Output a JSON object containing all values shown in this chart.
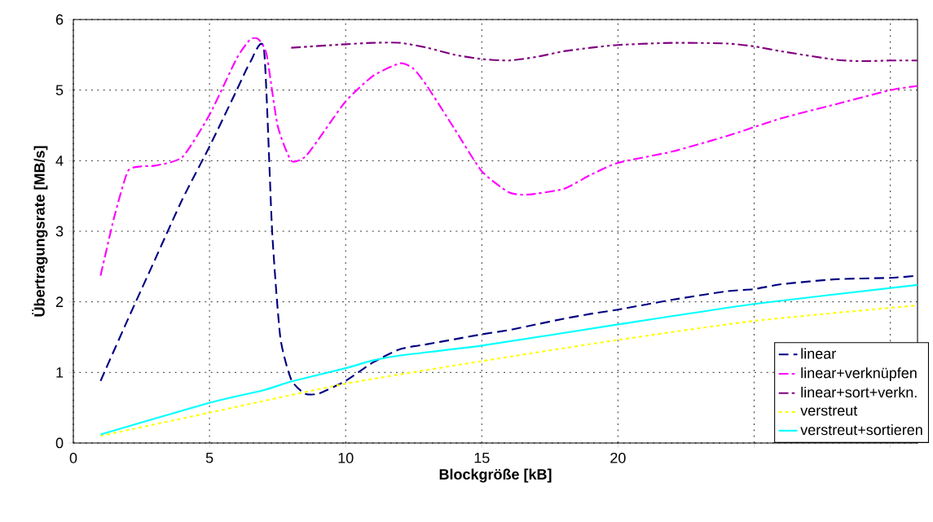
{
  "chart_data": {
    "type": "line",
    "xlabel": "Blockgröße [kB]",
    "ylabel": "Übertragungsrate [MB/s]",
    "xlim": [
      0,
      31
    ],
    "ylim": [
      0,
      6
    ],
    "xticks": [
      0,
      5,
      10,
      15,
      20,
      {
        "value": 25,
        "label": null
      },
      {
        "value": 30,
        "label": null
      }
    ],
    "yticks": [
      0,
      1,
      2,
      3,
      4,
      5,
      6
    ],
    "grid": true,
    "legend": "bottom right",
    "series": [
      {
        "name": "linear",
        "color": "#000080",
        "line_style": "dashed",
        "x": [
          1,
          2,
          3,
          4,
          5,
          6,
          6.5,
          7,
          7.3,
          7.6,
          8,
          8.5,
          9,
          10,
          11,
          12,
          13,
          14,
          15,
          16,
          17,
          18,
          19,
          20,
          22,
          24,
          25,
          26,
          28,
          30,
          31
        ],
        "values": [
          0.88,
          1.75,
          2.6,
          3.45,
          4.2,
          5.0,
          5.4,
          5.58,
          3.0,
          1.5,
          0.9,
          0.7,
          0.7,
          0.88,
          1.14,
          1.33,
          1.4,
          1.47,
          1.54,
          1.6,
          1.68,
          1.76,
          1.83,
          1.89,
          2.03,
          2.15,
          2.18,
          2.25,
          2.32,
          2.34,
          2.37
        ]
      },
      {
        "name": "linear+verknüpfen",
        "color": "#ff00ff",
        "line_style": "dashdot",
        "x": [
          1,
          1.5,
          2,
          2.5,
          3,
          4,
          5,
          6,
          6.5,
          6.8,
          7.1,
          7.5,
          8,
          8.5,
          9,
          10,
          11,
          12,
          12.5,
          13,
          14,
          15,
          16,
          16.7,
          18,
          19,
          20,
          22,
          24,
          26,
          28,
          30,
          31
        ],
        "values": [
          2.37,
          3.2,
          3.85,
          3.92,
          3.93,
          4.05,
          4.65,
          5.45,
          5.72,
          5.72,
          5.5,
          4.5,
          4.0,
          4.05,
          4.3,
          4.84,
          5.2,
          5.38,
          5.3,
          5.05,
          4.45,
          3.85,
          3.55,
          3.52,
          3.6,
          3.8,
          3.97,
          4.13,
          4.35,
          4.6,
          4.8,
          5.0,
          5.06
        ]
      },
      {
        "name": "linear+sort+verkn.",
        "color": "#800080",
        "line_style": "dashdotdot",
        "x": [
          8,
          10,
          11,
          12,
          13,
          14,
          15,
          16,
          17,
          18,
          19,
          20,
          22,
          24,
          25,
          26,
          28,
          29,
          30,
          31
        ],
        "values": [
          5.6,
          5.65,
          5.67,
          5.67,
          5.6,
          5.5,
          5.44,
          5.42,
          5.47,
          5.55,
          5.6,
          5.64,
          5.67,
          5.66,
          5.62,
          5.55,
          5.43,
          5.41,
          5.42,
          5.42
        ]
      },
      {
        "name": "verstreut",
        "color": "#ffff00",
        "line_style": "dotted",
        "x": [
          1,
          5,
          10,
          15,
          20,
          25,
          31
        ],
        "values": [
          0.1,
          0.43,
          0.84,
          1.16,
          1.46,
          1.73,
          1.95
        ]
      },
      {
        "name": "verstreut+sortieren",
        "color": "#00ffff",
        "line_style": "solid",
        "x": [
          1,
          5,
          7,
          8,
          10,
          11,
          12,
          15,
          20,
          25,
          31
        ],
        "values": [
          0.12,
          0.57,
          0.75,
          0.87,
          1.06,
          1.17,
          1.24,
          1.38,
          1.68,
          1.97,
          2.24
        ]
      }
    ]
  }
}
